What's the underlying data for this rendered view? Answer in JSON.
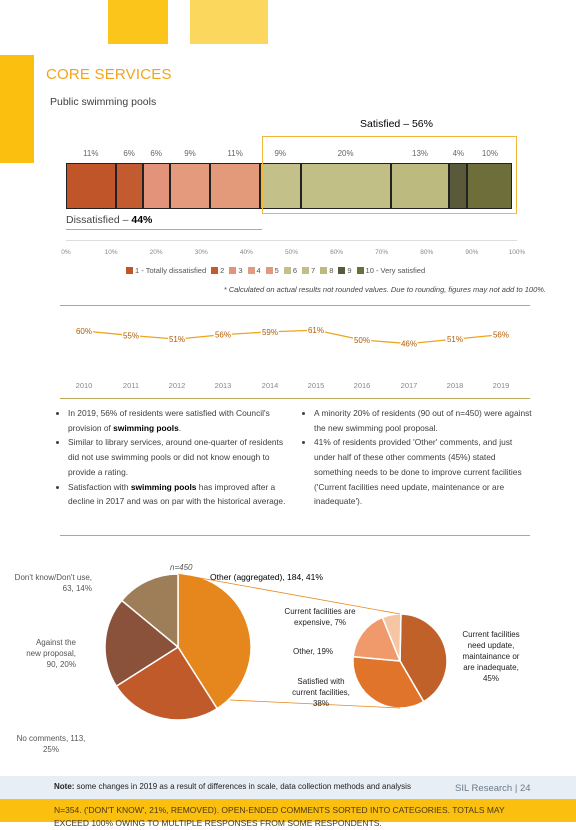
{
  "section_title": "CORE SERVICES",
  "subtitle": "Public swimming pools",
  "satisfied_label": "Satisfied – 56%",
  "dissatisfied_label": "Dissatisfied – ",
  "dissatisfied_value": "44%",
  "footnote": "* Calculated on actual results not rounded values. Due to rounding, figures may not add to 100%.",
  "chart_data": [
    {
      "type": "bar",
      "stacked": true,
      "orientation": "horizontal",
      "categories": [
        "1 - Totally dissatisfied",
        "2",
        "3",
        "4",
        "5",
        "6",
        "7",
        "8",
        "9",
        "10 - Very satisfied"
      ],
      "values": [
        11,
        6,
        6,
        9,
        11,
        9,
        20,
        13,
        4,
        10
      ],
      "value_labels": [
        "11%",
        "6%",
        "6%",
        "9%",
        "11%",
        "9%",
        "20%",
        "13%",
        "4%",
        "10%"
      ],
      "colors": [
        "#c0552a",
        "#c25b2f",
        "#e2937a",
        "#e39a7d",
        "#e39a7b",
        "#c4c08a",
        "#c2bf86",
        "#bdba80",
        "#5a5a3a",
        "#6e6e3a"
      ],
      "xticks": [
        "0%",
        "10%",
        "20%",
        "30%",
        "40%",
        "50%",
        "60%",
        "70%",
        "80%",
        "90%",
        "100%"
      ],
      "xlim": [
        0,
        100
      ],
      "legend_placement": "bottom"
    },
    {
      "type": "line",
      "x": [
        "2010",
        "2011",
        "2012",
        "2013",
        "2014",
        "2015",
        "2016",
        "2017",
        "2018",
        "2019"
      ],
      "values": [
        60,
        55,
        51,
        56,
        59,
        61,
        50,
        46,
        51,
        56
      ],
      "value_labels": [
        "60%",
        "55%",
        "51%",
        "56%",
        "59%",
        "61%",
        "50%",
        "46%",
        "51%",
        "56%"
      ],
      "color": "#f0a31b"
    },
    {
      "type": "pie",
      "title": "n=450",
      "slices": [
        {
          "label": "Other (aggregated), 184, 41%",
          "value": 41,
          "color": "#e6871d"
        },
        {
          "label": "No comments, 113, 25%",
          "value": 25,
          "color": "#c05a2a"
        },
        {
          "label": "Against the new proposal, 90, 20%",
          "value": 20,
          "color": "#8a523a"
        },
        {
          "label": "Don't know/Don't use, 63, 14%",
          "value": 14,
          "color": "#9e7e58"
        }
      ]
    },
    {
      "type": "pie",
      "slices": [
        {
          "label": "Current facilities need update, maintainance or are inadequate, 45%",
          "value": 45,
          "color": "#c0612a"
        },
        {
          "label": "Satisfied with current facilities, 38%",
          "value": 38,
          "color": "#e0742a"
        },
        {
          "label": "Other, 19%",
          "value": 19,
          "color": "#f09a6b"
        },
        {
          "label": "Current facilities are expensive, 7%",
          "value": 7,
          "color": "#f6c5a4"
        }
      ]
    }
  ],
  "bullets_left": [
    [
      "In 2019, 56% of residents were satisfied with Council's provision of ",
      "swimming pools",
      "."
    ],
    [
      "Similar to library services, around one-quarter of residents did not use swimming pools or did not know enough to provide a rating.",
      "",
      ""
    ],
    [
      "Satisfaction with ",
      "swimming pools",
      " has improved after a decline in 2017 and was on par with the historical average."
    ]
  ],
  "bullets_right": [
    "A minority 20% of residents (90 out of n=450) were against the new swimming pool proposal.",
    "41% of residents provided 'Other' comments, and just under half of these other comments (45%) stated something needs to be done to improve current facilities ('Current facilities need update, maintenance or are inadequate')."
  ],
  "pie_title": "n=450",
  "pie_labels": {
    "other_agg": "Other (aggregated), 184, 41%",
    "dont_know": "Don't know/Don't use, 63, 14%",
    "against": "Against the new proposal, 90, 20%",
    "no_comments": "No comments, 113, 25%",
    "expensive": "Current facilities are expensive, 7%",
    "other": "Other, 19%",
    "satisfied": "Satisfied with current facilities, 38%",
    "need_update": "Current facilities need update, maintainance or are inadequate, 45%"
  },
  "footer_note_bold": "Note:",
  "footer_note": " some changes in 2019 as a result of differences in scale, data collection methods and analysis",
  "page_label": "SIL Research | 24",
  "bottom_banner": "N=354. ('DON'T KNOW', 21%, REMOVED). OPEN-ENDED COMMENTS SORTED INTO CATEGORIES. TOTALS MAY EXCEED 100% OWING TO MULTIPLE RESPONSES FROM SOME RESPONDENTS."
}
